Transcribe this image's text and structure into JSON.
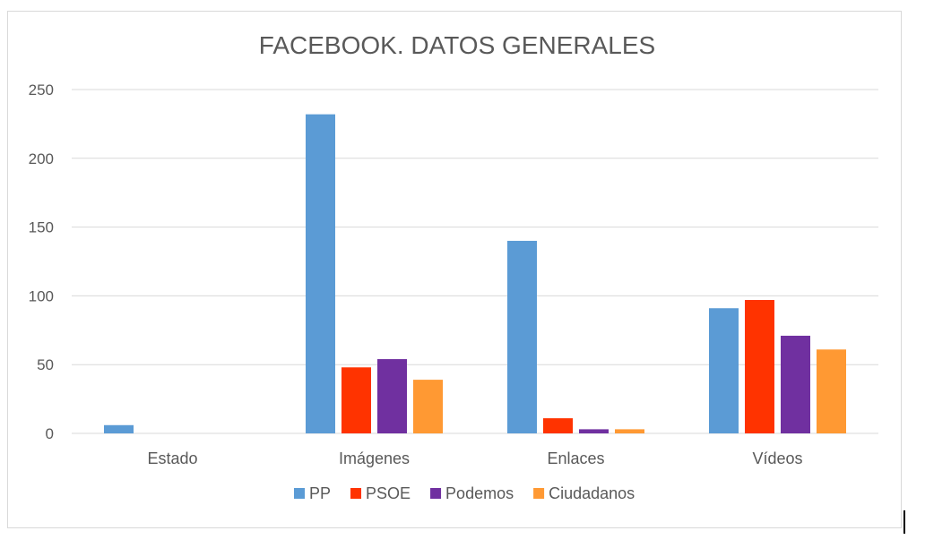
{
  "chart_data": {
    "type": "bar",
    "title": "FACEBOOK. DATOS GENERALES",
    "xlabel": "",
    "ylabel": "",
    "categories": [
      "Estado",
      "Imágenes",
      "Enlaces",
      "Vídeos"
    ],
    "series": [
      {
        "name": "PP",
        "color": "#5b9bd5",
        "values": [
          6,
          232,
          140,
          91
        ]
      },
      {
        "name": "PSOE",
        "color": "#ff3300",
        "values": [
          0,
          48,
          11,
          97
        ]
      },
      {
        "name": "Podemos",
        "color": "#7030a0",
        "values": [
          0,
          54,
          3,
          71
        ]
      },
      {
        "name": "Ciudadanos",
        "color": "#ff9933",
        "values": [
          0,
          39,
          3,
          61
        ]
      }
    ],
    "ylim": [
      0,
      250
    ],
    "yticks": [
      0,
      50,
      100,
      150,
      200,
      250
    ],
    "ytick_labels": [
      "0",
      "50",
      "100",
      "150",
      "200",
      "250"
    ],
    "grid": true,
    "legend_position": "bottom"
  }
}
